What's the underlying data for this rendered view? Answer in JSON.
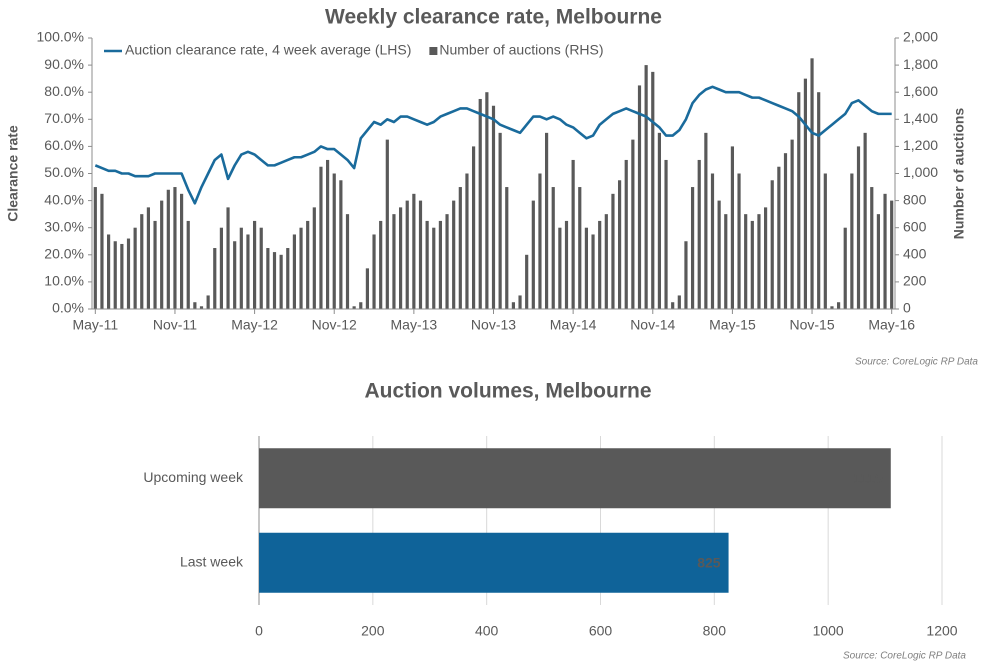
{
  "chart_data": [
    {
      "type": "combo",
      "title": "Weekly clearance rate, Melbourne",
      "y_label": "Clearance rate",
      "y2_label": "Number of auctions",
      "source": "Source: CoreLogic  RP Data",
      "legend": "top-left",
      "grid": false,
      "categories": [
        "May-11",
        null,
        null,
        null,
        null,
        null,
        null,
        null,
        null,
        null,
        null,
        null,
        "Nov-11",
        null,
        null,
        null,
        null,
        null,
        null,
        null,
        null,
        null,
        null,
        null,
        "May-12",
        null,
        null,
        null,
        null,
        null,
        null,
        null,
        null,
        null,
        null,
        null,
        "Nov-12",
        null,
        null,
        null,
        null,
        null,
        null,
        null,
        null,
        null,
        null,
        null,
        "May-13",
        null,
        null,
        null,
        null,
        null,
        null,
        null,
        null,
        null,
        null,
        null,
        "Nov-13",
        null,
        null,
        null,
        null,
        null,
        null,
        null,
        null,
        null,
        null,
        null,
        "May-14",
        null,
        null,
        null,
        null,
        null,
        null,
        null,
        null,
        null,
        null,
        null,
        "Nov-14",
        null,
        null,
        null,
        null,
        null,
        null,
        null,
        null,
        null,
        null,
        null,
        "May-15",
        null,
        null,
        null,
        null,
        null,
        null,
        null,
        null,
        null,
        null,
        null,
        "Nov-15",
        null,
        null,
        null,
        null,
        null,
        null,
        null,
        null,
        null,
        null,
        null,
        "May-16"
      ],
      "ylim": [
        0,
        100
      ],
      "yticks": [
        {
          "value": 0,
          "label": "0.0%"
        },
        {
          "value": 10,
          "label": "10.0%"
        },
        {
          "value": 20,
          "label": "20.0%"
        },
        {
          "value": 30,
          "label": "30.0%"
        },
        {
          "value": 40,
          "label": "40.0%"
        },
        {
          "value": 50,
          "label": "50.0%"
        },
        {
          "value": 60,
          "label": "60.0%"
        },
        {
          "value": 70,
          "label": "70.0%"
        },
        {
          "value": 80,
          "label": "80.0%"
        },
        {
          "value": 90,
          "label": "90.0%"
        },
        {
          "value": 100,
          "label": "100.0%"
        }
      ],
      "y2lim": [
        0,
        2000
      ],
      "y2ticks": [
        0,
        200,
        400,
        600,
        800,
        {
          "value": 1000,
          "label": "1,000"
        },
        {
          "value": 1200,
          "label": "1,200"
        },
        {
          "value": 1400,
          "label": "1,400"
        },
        {
          "value": 1600,
          "label": "1,600"
        },
        {
          "value": 1800,
          "label": "1,800"
        },
        {
          "value": 2000,
          "label": "2,000"
        }
      ],
      "series": [
        {
          "name": "Number of auctions (RHS)",
          "type": "bar",
          "axis": "y2",
          "color": "#595959",
          "values": [
            900,
            850,
            550,
            500,
            480,
            520,
            600,
            700,
            750,
            650,
            800,
            880,
            900,
            850,
            650,
            50,
            20,
            100,
            450,
            600,
            750,
            500,
            600,
            550,
            650,
            600,
            450,
            420,
            400,
            450,
            550,
            600,
            650,
            750,
            1050,
            1100,
            1000,
            950,
            700,
            20,
            50,
            300,
            550,
            650,
            1250,
            700,
            750,
            800,
            850,
            800,
            650,
            600,
            650,
            700,
            800,
            900,
            1000,
            1200,
            1550,
            1600,
            1500,
            1300,
            900,
            50,
            100,
            400,
            800,
            1000,
            1300,
            900,
            600,
            650,
            1100,
            900,
            600,
            550,
            650,
            700,
            850,
            950,
            1100,
            1250,
            1650,
            1800,
            1750,
            1300,
            1100,
            50,
            100,
            500,
            900,
            1100,
            1300,
            1000,
            800,
            700,
            1200,
            1000,
            700,
            650,
            700,
            750,
            950,
            1050,
            1150,
            1250,
            1600,
            1700,
            1850,
            1600,
            1000,
            20,
            50,
            600,
            1000,
            1200,
            1300,
            900,
            700,
            850,
            800
          ]
        },
        {
          "name": "Auction clearance rate, 4 week average (LHS)",
          "type": "line",
          "axis": "y",
          "color": "#1a6b9c",
          "values": [
            53,
            52,
            51,
            51,
            50,
            50,
            49,
            49,
            49,
            50,
            50,
            50,
            50,
            50,
            44,
            39,
            45,
            50,
            55,
            57,
            48,
            53,
            57,
            58,
            57,
            55,
            53,
            53,
            54,
            55,
            56,
            56,
            57,
            58,
            60,
            59,
            59,
            57,
            55,
            52,
            63,
            66,
            69,
            68,
            70,
            69,
            71,
            71,
            70,
            69,
            68,
            69,
            71,
            72,
            73,
            74,
            74,
            73,
            72,
            71,
            70,
            68,
            67,
            66,
            65,
            68,
            71,
            71,
            70,
            71,
            70,
            68,
            67,
            65,
            63,
            64,
            68,
            70,
            72,
            73,
            74,
            73,
            72,
            71,
            69,
            67,
            64,
            64,
            66,
            70,
            76,
            79,
            81,
            82,
            81,
            80,
            80,
            80,
            79,
            78,
            78,
            77,
            76,
            75,
            74,
            73,
            71,
            68,
            65,
            64,
            66,
            68,
            70,
            72,
            76,
            77,
            75,
            73,
            72,
            72,
            72
          ]
        }
      ]
    },
    {
      "type": "hbar",
      "title": "Auction volumes, Melbourne",
      "source": "Source: CoreLogic  RP Data",
      "grid": true,
      "categories": [
        "Upcoming week",
        "Last week"
      ],
      "values": [
        1110,
        825
      ],
      "colors": [
        "#595959",
        "#0f6399"
      ],
      "xlim": [
        0,
        1200
      ],
      "xticks": [
        0,
        200,
        400,
        600,
        800,
        1000,
        1200
      ]
    }
  ]
}
